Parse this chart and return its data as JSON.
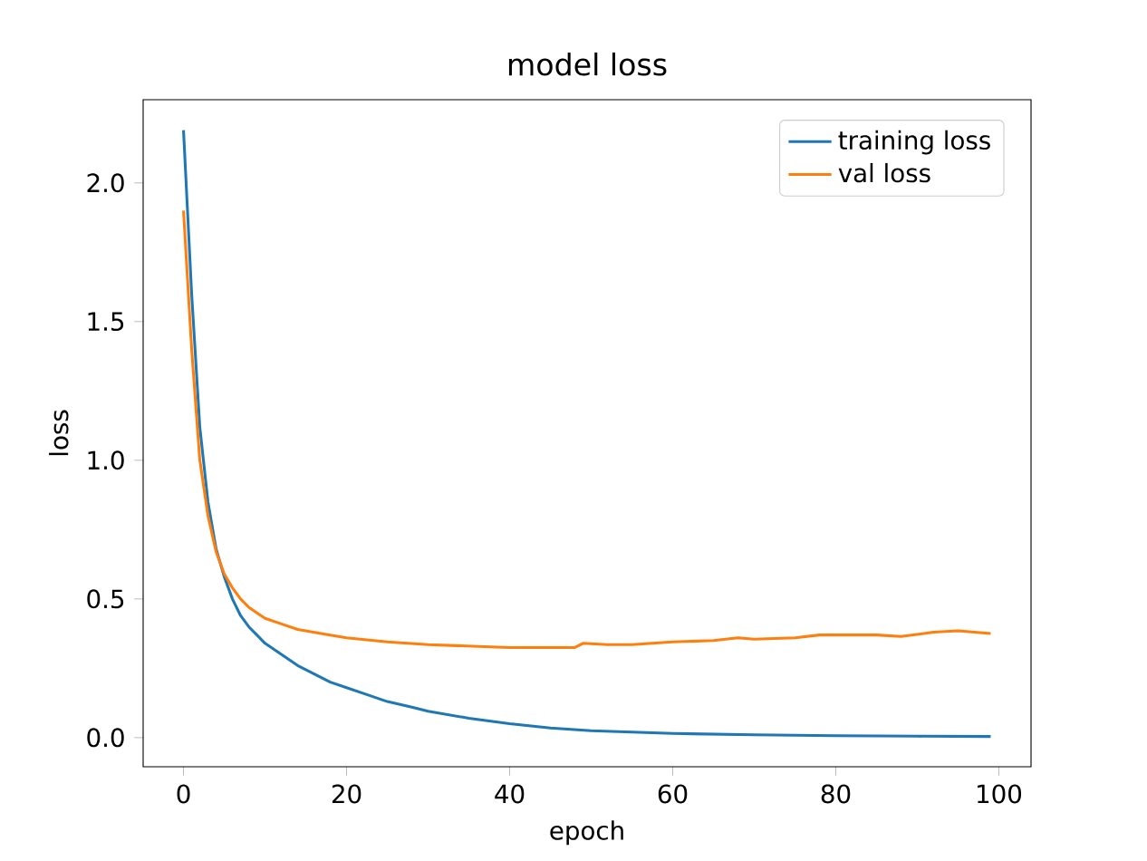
{
  "chart_data": {
    "type": "line",
    "title": "model loss",
    "xlabel": "epoch",
    "ylabel": "loss",
    "xlim": [
      -4.95,
      103.95
    ],
    "ylim": [
      -0.105,
      2.3
    ],
    "xticks": [
      0,
      20,
      40,
      60,
      80,
      100
    ],
    "yticks": [
      {
        "value": 0,
        "label": "0.0"
      },
      {
        "value": 0.5,
        "label": "0.5"
      },
      {
        "value": 1.0,
        "label": "1.0"
      },
      {
        "value": 1.5,
        "label": "1.5"
      },
      {
        "value": 2.0,
        "label": "2.0"
      }
    ],
    "legend": "top right",
    "grid": false,
    "marker": "none",
    "line_style": "solid",
    "series": [
      {
        "name": "training loss",
        "color": "#1f77b4",
        "x": [
          0,
          1,
          2,
          3,
          4,
          5,
          6,
          7,
          8,
          9,
          10,
          12,
          14,
          16,
          18,
          20,
          22,
          25,
          28,
          30,
          35,
          40,
          45,
          50,
          55,
          60,
          70,
          80,
          90,
          99
        ],
        "values": [
          2.19,
          1.6,
          1.12,
          0.85,
          0.68,
          0.58,
          0.5,
          0.44,
          0.4,
          0.37,
          0.34,
          0.3,
          0.26,
          0.23,
          0.2,
          0.18,
          0.16,
          0.13,
          0.11,
          0.095,
          0.07,
          0.05,
          0.035,
          0.025,
          0.02,
          0.015,
          0.01,
          0.007,
          0.005,
          0.004
        ]
      },
      {
        "name": "val loss",
        "color": "#ff7f0e",
        "x": [
          0,
          1,
          2,
          3,
          4,
          5,
          6,
          7,
          8,
          9,
          10,
          12,
          14,
          16,
          18,
          20,
          25,
          30,
          35,
          40,
          45,
          48,
          49,
          52,
          55,
          60,
          65,
          68,
          70,
          75,
          78,
          85,
          88,
          92,
          95,
          97,
          99
        ],
        "values": [
          1.9,
          1.4,
          1.0,
          0.8,
          0.67,
          0.59,
          0.54,
          0.5,
          0.47,
          0.45,
          0.43,
          0.41,
          0.39,
          0.38,
          0.37,
          0.36,
          0.345,
          0.335,
          0.33,
          0.325,
          0.325,
          0.325,
          0.34,
          0.335,
          0.335,
          0.345,
          0.35,
          0.36,
          0.355,
          0.36,
          0.37,
          0.37,
          0.365,
          0.38,
          0.385,
          0.38,
          0.375
        ]
      }
    ]
  }
}
